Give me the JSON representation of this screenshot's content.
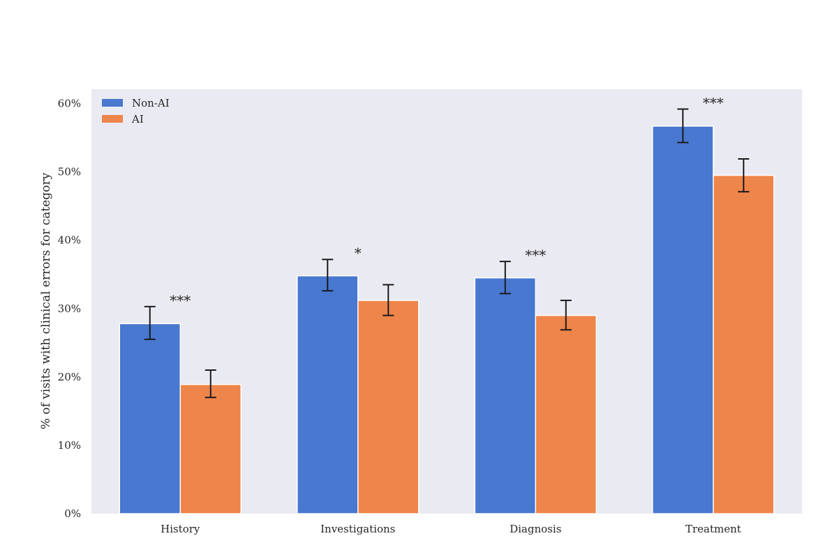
{
  "chart_data": {
    "type": "bar",
    "title": "",
    "xlabel": "",
    "ylabel": "% of visits with clinical errors for category",
    "ylim": [
      0,
      62.1
    ],
    "yticks": [
      0,
      10,
      20,
      30,
      40,
      50,
      60
    ],
    "ytick_labels": [
      "0%",
      "10%",
      "20%",
      "30%",
      "40%",
      "50%",
      "60%"
    ],
    "grid": false,
    "legend_position": "top-left",
    "categories": [
      "History",
      "Investigations",
      "Diagnosis",
      "Treatment"
    ],
    "series": [
      {
        "name": "Non-AI",
        "color": "#4878d0",
        "values": [
          27.8,
          34.8,
          34.5,
          56.7
        ],
        "err_low": [
          25.5,
          32.6,
          32.2,
          54.3
        ],
        "err_high": [
          30.3,
          37.2,
          36.9,
          59.2
        ]
      },
      {
        "name": "AI",
        "color": "#ee854a",
        "values": [
          18.9,
          31.2,
          29.0,
          49.5
        ],
        "err_low": [
          17.0,
          29.0,
          26.9,
          47.1
        ],
        "err_high": [
          21.0,
          33.5,
          31.2,
          51.9
        ]
      }
    ],
    "annotations": [
      "***",
      "*",
      "***",
      "***"
    ],
    "background": "#eaeaf2"
  }
}
